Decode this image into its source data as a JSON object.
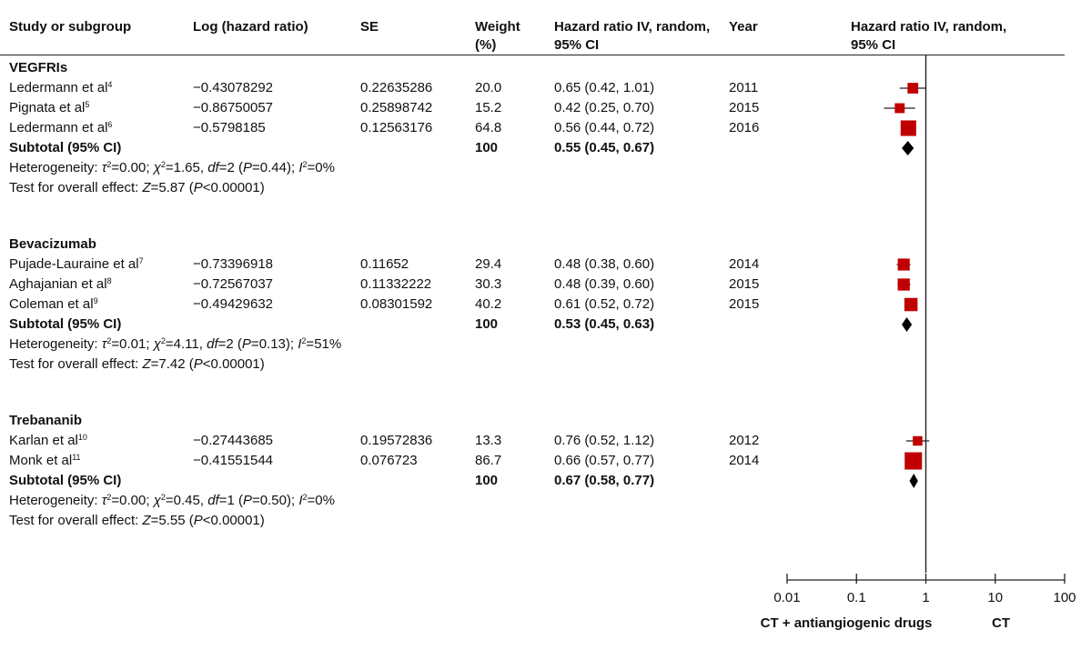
{
  "headers": {
    "study": "Study or subgroup",
    "log_hr": "Log (hazard ratio)",
    "se": "SE",
    "weight": "Weight (%)",
    "hr": "Hazard ratio IV, random, 95% CI",
    "year": "Year",
    "plot": "Hazard ratio IV, random, 95% CI"
  },
  "subtotal_label": "Subtotal (95% CI)",
  "subgroups": [
    {
      "name": "VEGFRIs",
      "studies": [
        {
          "author": "Ledermann et al",
          "ref": "4",
          "log_hr": "−0.43078292",
          "se": "0.22635286",
          "weight": "20.0",
          "hr_text": "0.65 (0.42, 1.01)",
          "year": "2011"
        },
        {
          "author": "Pignata et al",
          "ref": "5",
          "log_hr": "−0.86750057",
          "se": "0.25898742",
          "weight": "15.2",
          "hr_text": "0.42 (0.25, 0.70)",
          "year": "2015"
        },
        {
          "author": "Ledermann et al",
          "ref": "6",
          "log_hr": "−0.5798185",
          "se": "0.12563176",
          "weight": "64.8",
          "hr_text": "0.56 (0.44, 0.72)",
          "year": "2016"
        }
      ],
      "subtotal": {
        "weight": "100",
        "hr_text": "0.55 (0.45, 0.67)"
      },
      "heterogeneity": {
        "tau2": "0.00",
        "chi2": "1.65",
        "df": "2",
        "p": "0.44",
        "i2": "0%"
      },
      "overall": {
        "z": "5.87",
        "p": "<0.00001"
      }
    },
    {
      "name": "Bevacizumab",
      "studies": [
        {
          "author": "Pujade-Lauraine et al",
          "ref": "7",
          "log_hr": "−0.73396918",
          "se": "0.11652",
          "weight": "29.4",
          "hr_text": "0.48 (0.38, 0.60)",
          "year": "2014"
        },
        {
          "author": "Aghajanian et al",
          "ref": "8",
          "log_hr": "−0.72567037",
          "se": "0.11332222",
          "weight": "30.3",
          "hr_text": "0.48 (0.39, 0.60)",
          "year": "2015"
        },
        {
          "author": "Coleman et al",
          "ref": "9",
          "log_hr": "−0.49429632",
          "se": "0.08301592",
          "weight": "40.2",
          "hr_text": "0.61 (0.52, 0.72)",
          "year": "2015"
        }
      ],
      "subtotal": {
        "weight": "100",
        "hr_text": "0.53 (0.45, 0.63)"
      },
      "heterogeneity": {
        "tau2": "0.01",
        "chi2": "4.11",
        "df": "2",
        "p": "0.13",
        "i2": "51%"
      },
      "overall": {
        "z": "7.42",
        "p": "<0.00001"
      }
    },
    {
      "name": "Trebananib",
      "studies": [
        {
          "author": "Karlan et al",
          "ref": "10",
          "log_hr": "−0.27443685",
          "se": "0.19572836",
          "weight": "13.3",
          "hr_text": "0.76 (0.52, 1.12)",
          "year": "2012"
        },
        {
          "author": "Monk et al",
          "ref": "11",
          "log_hr": "−0.41551544",
          "se": "0.076723",
          "weight": "86.7",
          "hr_text": "0.66 (0.57, 0.77)",
          "year": "2014"
        }
      ],
      "subtotal": {
        "weight": "100",
        "hr_text": "0.67 (0.58, 0.77)"
      },
      "heterogeneity": {
        "tau2": "0.00",
        "chi2": "0.45",
        "df": "1",
        "p": "0.50",
        "i2": "0%"
      },
      "overall": {
        "z": "5.55",
        "p": "<0.00001"
      }
    }
  ],
  "footer": {
    "left": "CT + antiangiogenic drugs",
    "right": "CT"
  },
  "colors": {
    "marker": "#c00000",
    "diamond": "#000000",
    "line": "#222222"
  },
  "chart_data": {
    "type": "forest",
    "x_scale": "log",
    "xlim": [
      0.01,
      100
    ],
    "x_ticks": [
      "0.01",
      "0.1",
      "1",
      "10",
      "100"
    ],
    "reference_line": 1,
    "studies": [
      {
        "name": "Ledermann et al 2011",
        "hr": 0.65,
        "lo": 0.42,
        "hi": 1.01,
        "weight": 20.0
      },
      {
        "name": "Pignata et al 2015",
        "hr": 0.42,
        "lo": 0.25,
        "hi": 0.7,
        "weight": 15.2
      },
      {
        "name": "Ledermann et al 2016",
        "hr": 0.56,
        "lo": 0.44,
        "hi": 0.72,
        "weight": 64.8
      },
      {
        "name": "Pujade-Lauraine et al 2014",
        "hr": 0.48,
        "lo": 0.38,
        "hi": 0.6,
        "weight": 29.4
      },
      {
        "name": "Aghajanian et al 2015",
        "hr": 0.48,
        "lo": 0.39,
        "hi": 0.6,
        "weight": 30.3
      },
      {
        "name": "Coleman et al 2015",
        "hr": 0.61,
        "lo": 0.52,
        "hi": 0.72,
        "weight": 40.2
      },
      {
        "name": "Karlan et al 2012",
        "hr": 0.76,
        "lo": 0.52,
        "hi": 1.12,
        "weight": 13.3
      },
      {
        "name": "Monk et al 2014",
        "hr": 0.66,
        "lo": 0.57,
        "hi": 0.77,
        "weight": 86.7
      }
    ],
    "subtotals": [
      {
        "name": "VEGFRIs",
        "hr": 0.55,
        "lo": 0.45,
        "hi": 0.67
      },
      {
        "name": "Bevacizumab",
        "hr": 0.53,
        "lo": 0.45,
        "hi": 0.63
      },
      {
        "name": "Trebananib",
        "hr": 0.67,
        "lo": 0.58,
        "hi": 0.77
      }
    ]
  }
}
